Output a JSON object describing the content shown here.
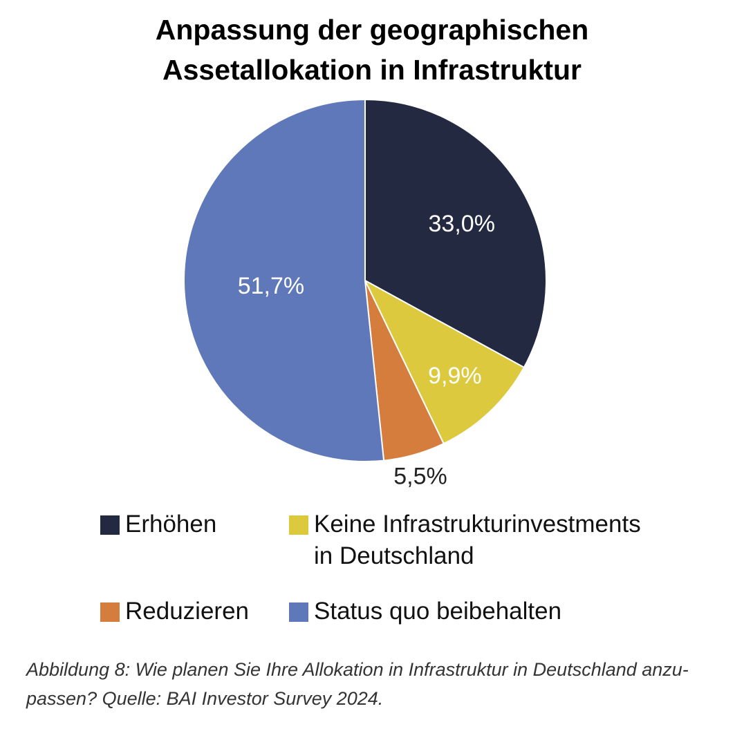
{
  "title_lines": [
    "Anpassung der geographischen",
    "Assetallokation in Infrastruktur"
  ],
  "chart_data": {
    "type": "pie",
    "title": "Anpassung der geographischen Assetallokation in Infrastruktur",
    "start": "top",
    "direction": "clockwise",
    "slices": [
      {
        "label": "Erhöhen",
        "value": 33.0,
        "display": "33,0%",
        "color": "#242942",
        "label_color": "#ffffff"
      },
      {
        "label": "Keine Infrastrukturinvestments in Deutschland",
        "value": 9.9,
        "display": "9,9%",
        "color": "#dcc93d",
        "label_color": "#ffffff"
      },
      {
        "label": "Reduzieren",
        "value": 5.5,
        "display": "5,5%",
        "color": "#d57d3c",
        "label_color": "#222222"
      },
      {
        "label": "Status quo beibehalten",
        "value": 51.7,
        "display": "51,7%",
        "color": "#5f78b9",
        "label_color": "#ffffff"
      }
    ],
    "legend": {
      "placement": "bottom",
      "entries": [
        {
          "lines": [
            "Erhöhen"
          ],
          "color": "#242942"
        },
        {
          "lines": [
            "Keine Infrastrukturinvestments",
            "in Deutschland"
          ],
          "color": "#dcc93d"
        },
        {
          "lines": [
            "Reduzieren"
          ],
          "color": "#d57d3c"
        },
        {
          "lines": [
            "Status quo beibehalten"
          ],
          "color": "#5f78b9"
        }
      ]
    }
  },
  "caption_lines": [
    "Abbildung 8: Wie planen Sie Ihre Allokation in Infrastruktur in Deutschland anzu-",
    "passen? Quelle: BAI Investor Survey 2024."
  ]
}
